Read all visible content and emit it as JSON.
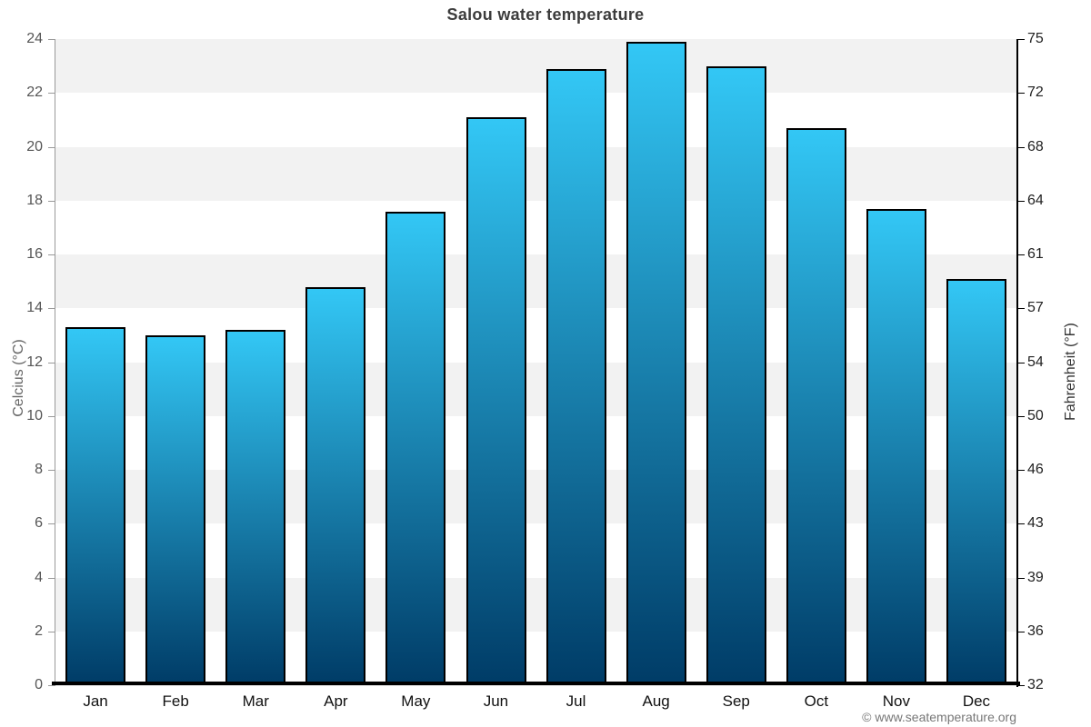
{
  "chart_data": {
    "type": "bar",
    "title": "Salou water temperature",
    "categories": [
      "Jan",
      "Feb",
      "Mar",
      "Apr",
      "May",
      "Jun",
      "Jul",
      "Aug",
      "Sep",
      "Oct",
      "Nov",
      "Dec"
    ],
    "values": [
      13.3,
      13.0,
      13.2,
      14.8,
      17.6,
      21.1,
      22.9,
      23.9,
      23.0,
      20.7,
      17.7,
      15.1
    ],
    "unit": "°C",
    "xlabel": "",
    "ylabel_left": "Celcius (°C)",
    "ylabel_right": "Fahrenheit (°F)",
    "ylim_celsius": [
      0,
      24
    ],
    "yticks_celsius": [
      0,
      2,
      4,
      6,
      8,
      10,
      12,
      14,
      16,
      18,
      20,
      22,
      24
    ],
    "yticks_fahrenheit": [
      32,
      36,
      39,
      43,
      46,
      50,
      54,
      57,
      61,
      64,
      68,
      72,
      75
    ],
    "grid": "alternating horizontal bands, on",
    "legend": "none",
    "source": "© www.seatemperature.org",
    "colors": {
      "bar_gradient_top": "#33c7f5",
      "bar_gradient_bottom": "#003c67",
      "bar_border": "#000000",
      "band_gray": "#f2f2f2",
      "band_white": "#ffffff",
      "band_edge": "#e6e6e6",
      "title": "#3c3c3c",
      "axis_title_left": "#666666",
      "axis_title_right": "#333333",
      "tick_label_left": "#555555",
      "tick_label_right": "#222222",
      "month_label": "#111111",
      "left_axis_line": "#999999",
      "right_axis_line": "#000000",
      "bottom_axis_line": "#000000",
      "source_text": "#777777"
    }
  }
}
